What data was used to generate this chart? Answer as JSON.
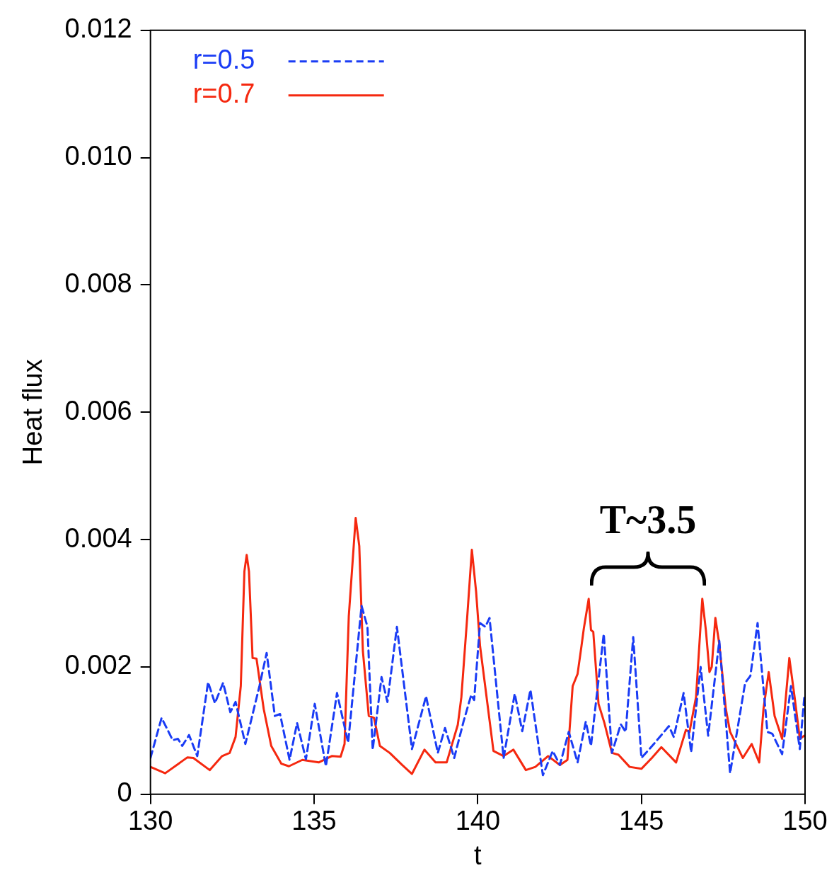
{
  "chart_data": {
    "type": "line",
    "xlabel": "t",
    "ylabel": "Heat flux",
    "xlim": [
      130,
      150
    ],
    "xticks": [
      130,
      135,
      140,
      145,
      150
    ],
    "ylim": [
      0,
      0.012
    ],
    "yticks": [
      0,
      {
        "value": 0.002,
        "label": "0.002"
      },
      {
        "value": 0.004,
        "label": "0.004"
      },
      {
        "value": 0.006,
        "label": "0.006"
      },
      {
        "value": 0.008,
        "label": "0.008"
      },
      {
        "value": 0.01,
        "label": "0.010"
      },
      {
        "value": 0.012,
        "label": "0.012"
      }
    ],
    "grid": false,
    "legend": "top left",
    "marker": "none",
    "annotations": [
      "T~3.5"
    ],
    "series": [
      {
        "name": "r=0.5",
        "color": "#1a3cf5",
        "line_style": "dashed",
        "x": [
          130.0,
          130.34,
          130.68,
          130.84,
          130.97,
          131.18,
          131.43,
          131.76,
          131.97,
          132.22,
          132.44,
          132.6,
          132.9,
          133.33,
          133.55,
          133.8,
          133.96,
          134.25,
          134.48,
          134.75,
          135.02,
          135.36,
          135.7,
          136.04,
          136.45,
          136.63,
          136.79,
          137.06,
          137.24,
          137.53,
          137.99,
          138.42,
          138.78,
          139.0,
          139.28,
          139.57,
          139.8,
          139.89,
          140.07,
          140.23,
          140.36,
          140.79,
          141.13,
          141.36,
          141.61,
          141.99,
          142.29,
          142.51,
          142.78,
          143.05,
          143.3,
          143.46,
          143.85,
          144.1,
          144.37,
          144.52,
          144.75,
          145.0,
          145.38,
          145.84,
          145.99,
          146.29,
          146.52,
          146.81,
          147.04,
          147.38,
          147.71,
          148.17,
          148.33,
          148.55,
          148.85,
          149.0,
          149.3,
          149.57,
          149.84,
          149.98
        ],
        "values": [
          0.00057,
          0.0012,
          0.00085,
          0.00087,
          0.00076,
          0.00093,
          0.0006,
          0.00176,
          0.00143,
          0.00175,
          0.00129,
          0.00145,
          0.00079,
          0.0017,
          0.00222,
          0.00123,
          0.00126,
          0.00054,
          0.00112,
          0.00055,
          0.00142,
          0.00044,
          0.00159,
          0.00081,
          0.00296,
          0.00263,
          0.0007,
          0.00184,
          0.00145,
          0.00263,
          0.00071,
          0.00154,
          0.00065,
          0.00104,
          0.00057,
          0.00115,
          0.00156,
          0.00148,
          0.00269,
          0.00263,
          0.00277,
          0.00057,
          0.00158,
          0.00099,
          0.00164,
          0.0003,
          0.00068,
          0.00046,
          0.00098,
          0.0005,
          0.00114,
          0.00076,
          0.00252,
          0.00065,
          0.0011,
          0.00098,
          0.00247,
          0.00057,
          0.00079,
          0.00107,
          0.0009,
          0.00159,
          0.00066,
          0.002,
          0.00092,
          0.00241,
          0.00033,
          0.00175,
          0.00186,
          0.00269,
          0.00098,
          0.00095,
          0.00063,
          0.0017,
          0.00071,
          0.00154
        ]
      },
      {
        "name": "r=0.7",
        "color": "#f5280f",
        "line_style": "solid",
        "x": [
          130.0,
          130.45,
          131.13,
          131.31,
          131.81,
          132.19,
          132.42,
          132.6,
          132.76,
          132.87,
          132.94,
          133.01,
          133.12,
          133.24,
          133.46,
          133.69,
          134.0,
          134.23,
          134.64,
          135.14,
          135.54,
          135.81,
          135.93,
          136.06,
          136.27,
          136.38,
          136.49,
          136.67,
          136.83,
          137.01,
          137.31,
          137.69,
          137.99,
          138.37,
          138.71,
          139.05,
          139.39,
          139.5,
          139.68,
          139.82,
          139.95,
          140.07,
          140.48,
          140.79,
          141.09,
          141.47,
          141.76,
          142.15,
          142.51,
          142.74,
          142.9,
          143.05,
          143.17,
          143.24,
          143.39,
          143.46,
          143.53,
          143.69,
          143.87,
          144.1,
          144.3,
          144.64,
          145.0,
          145.32,
          145.61,
          146.06,
          146.36,
          146.47,
          146.67,
          146.86,
          146.97,
          147.08,
          147.15,
          147.26,
          147.38,
          147.58,
          147.71,
          148.1,
          148.37,
          148.6,
          148.73,
          148.89,
          149.07,
          149.3,
          149.52,
          149.68,
          149.84,
          149.98
        ],
        "values": [
          0.00043,
          0.00033,
          0.00058,
          0.00057,
          0.00038,
          0.0006,
          0.00065,
          0.0009,
          0.0017,
          0.0035,
          0.00376,
          0.0035,
          0.00214,
          0.00213,
          0.00134,
          0.00076,
          0.00048,
          0.00044,
          0.00054,
          0.0005,
          0.0006,
          0.00059,
          0.00079,
          0.0028,
          0.00434,
          0.0039,
          0.00225,
          0.00123,
          0.0012,
          0.00076,
          0.00065,
          0.00046,
          0.00032,
          0.0007,
          0.0005,
          0.0005,
          0.00109,
          0.00153,
          0.0028,
          0.00384,
          0.00318,
          0.00233,
          0.00068,
          0.0006,
          0.0007,
          0.00038,
          0.00043,
          0.0006,
          0.00046,
          0.00054,
          0.0017,
          0.00189,
          0.00233,
          0.0026,
          0.00307,
          0.00258,
          0.00255,
          0.00142,
          0.00112,
          0.00065,
          0.00062,
          0.00043,
          0.0004,
          0.00057,
          0.00074,
          0.0005,
          0.00101,
          0.00098,
          0.00153,
          0.00307,
          0.00258,
          0.00192,
          0.002,
          0.00277,
          0.00236,
          0.00134,
          0.00098,
          0.00057,
          0.00079,
          0.0005,
          0.00134,
          0.00192,
          0.00123,
          0.00087,
          0.00214,
          0.00153,
          0.00087,
          0.00092
        ]
      }
    ]
  }
}
